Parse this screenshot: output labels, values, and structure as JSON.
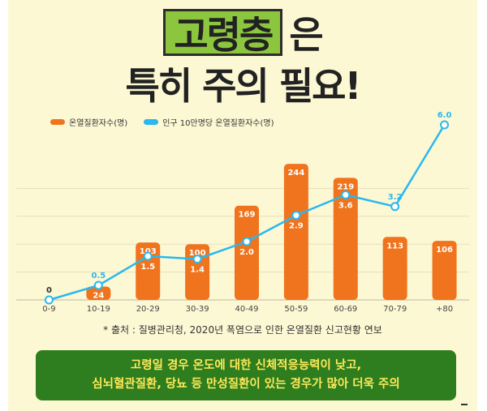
{
  "headline": {
    "highlight": "고령층",
    "line1_rest": "은",
    "line2": "특히 주의 필요!"
  },
  "legend": {
    "bar_label": "온열질환자수(명)",
    "line_label": "인구 10만명당 온열질환자수(명)"
  },
  "colors": {
    "bar": "#f0741d",
    "line": "#29b8ef",
    "background": "#fdf8d4",
    "highlight": "#8cc63f",
    "banner": "#2e7d1e",
    "banner_text": "#ffe95a"
  },
  "chart_data": {
    "type": "bar+line",
    "categories": [
      "0-9",
      "10-19",
      "20-29",
      "30-39",
      "40-49",
      "50-59",
      "60-69",
      "70-79",
      "+80"
    ],
    "series": [
      {
        "name": "온열질환자수(명)",
        "type": "bar",
        "values": [
          0,
          24,
          103,
          100,
          169,
          244,
          219,
          113,
          106
        ]
      },
      {
        "name": "인구 10만명당 온열질환자수(명)",
        "type": "line",
        "values": [
          0,
          0.5,
          1.5,
          1.4,
          2.0,
          2.9,
          3.6,
          3.2,
          6.0
        ]
      }
    ],
    "bar_ylim": [
      0,
      250
    ],
    "line_ylim": [
      0,
      6.5
    ],
    "grid": true
  },
  "source": "* 출처 : 질병관리청, 2020년 폭염으로 인한 온열질환 신고현황 연보",
  "banner": {
    "line1": "고령일 경우 온도에 대한 신체적응능력이 낮고,",
    "line2": "심뇌혈관질환, 당뇨 등 만성질환이 있는 경우가 많아 더욱 주의"
  }
}
